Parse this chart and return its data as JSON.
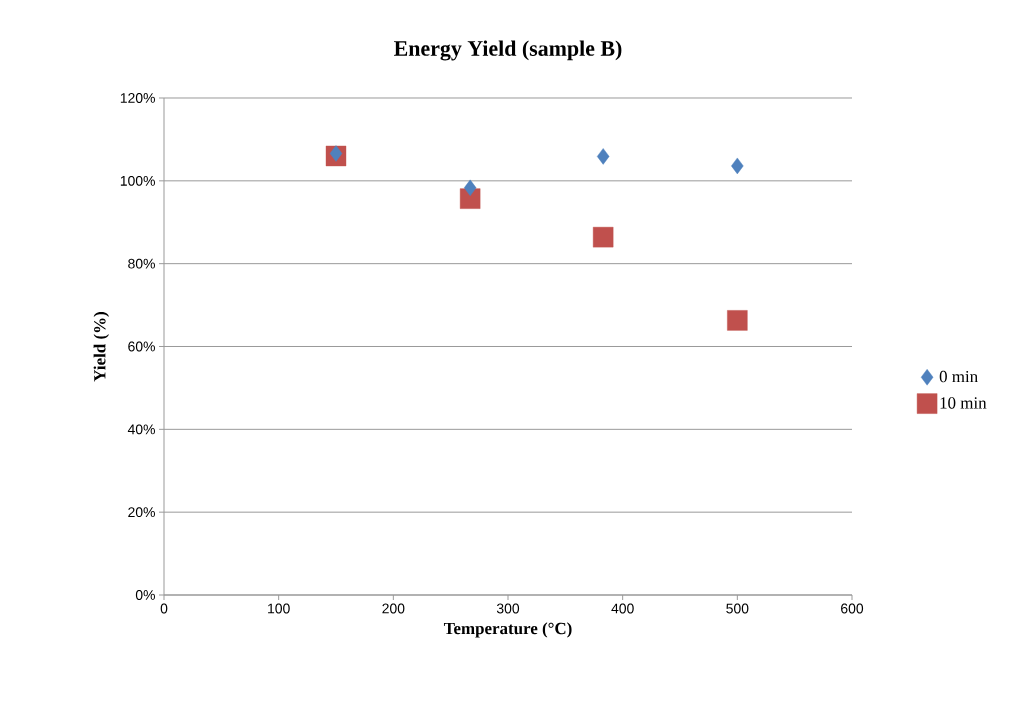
{
  "chart_data": {
    "type": "scatter",
    "title": "Energy Yield (sample B)",
    "xlabel": "Temperature (°C)",
    "ylabel": "Yield (%)",
    "xlim": [
      0,
      600
    ],
    "xticks": [
      0,
      100,
      200,
      300,
      400,
      500,
      600
    ],
    "ylim": [
      0,
      120
    ],
    "yticks": [
      {
        "value": 0,
        "label": "0%"
      },
      {
        "value": 20,
        "label": "20%"
      },
      {
        "value": 40,
        "label": "40%"
      },
      {
        "value": 60,
        "label": "60%"
      },
      {
        "value": 80,
        "label": "80%"
      },
      {
        "value": 100,
        "label": "100%"
      },
      {
        "value": 120,
        "label": "120%"
      }
    ],
    "grid": "y",
    "legend": "right",
    "x": [
      150,
      267,
      383,
      500
    ],
    "series": [
      {
        "name": "0 min",
        "color": "#4f81bd",
        "marker": "diamond",
        "values": [
          106.6,
          98.3,
          105.9,
          103.6
        ]
      },
      {
        "name": "10 min",
        "color": "#c0504d",
        "marker": "square",
        "values": [
          106.0,
          95.7,
          86.4,
          66.3
        ]
      }
    ]
  }
}
